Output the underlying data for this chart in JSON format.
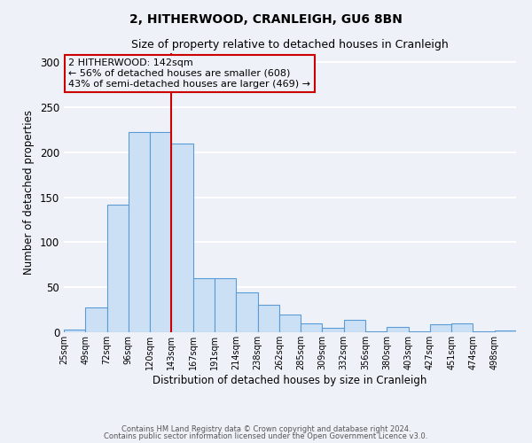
{
  "title": "2, HITHERWOOD, CRANLEIGH, GU6 8BN",
  "subtitle": "Size of property relative to detached houses in Cranleigh",
  "xlabel": "Distribution of detached houses by size in Cranleigh",
  "ylabel": "Number of detached properties",
  "bar_color": "#cce0f5",
  "bar_edge_color": "#5b9bd5",
  "bin_labels": [
    "25sqm",
    "49sqm",
    "72sqm",
    "96sqm",
    "120sqm",
    "143sqm",
    "167sqm",
    "191sqm",
    "214sqm",
    "238sqm",
    "262sqm",
    "285sqm",
    "309sqm",
    "332sqm",
    "356sqm",
    "380sqm",
    "403sqm",
    "427sqm",
    "451sqm",
    "474sqm",
    "498sqm"
  ],
  "bar_heights": [
    3,
    28,
    142,
    222,
    222,
    210,
    60,
    60,
    44,
    31,
    20,
    10,
    5,
    14,
    1,
    6,
    1,
    9,
    10,
    1,
    2
  ],
  "ylim": [
    0,
    310
  ],
  "yticks": [
    0,
    50,
    100,
    150,
    200,
    250,
    300
  ],
  "marker_label_line1": "2 HITHERWOOD: 142sqm",
  "marker_label_line2": "← 56% of detached houses are smaller (608)",
  "marker_label_line3": "43% of semi-detached houses are larger (469) →",
  "footer_line1": "Contains HM Land Registry data © Crown copyright and database right 2024.",
  "footer_line2": "Contains public sector information licensed under the Open Government Licence v3.0.",
  "background_color": "#eef2f8",
  "grid_color": "#ffffff",
  "annotation_box_edge": "#cc0000",
  "red_line_index": 5
}
